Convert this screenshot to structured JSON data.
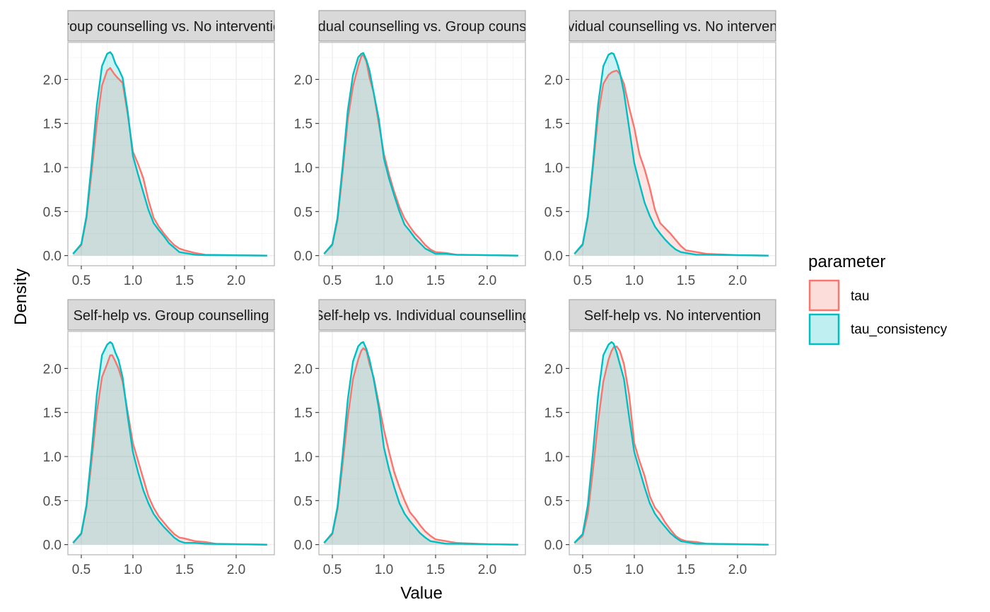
{
  "chart_data": {
    "type": "area",
    "xlabel": "Value",
    "ylabel": "Density",
    "xlim": [
      0.37,
      2.37
    ],
    "ylim": [
      -0.115,
      2.42
    ],
    "xticks": [
      0.5,
      1.0,
      1.5,
      2.0
    ],
    "xtick_labels": [
      "0.5",
      "1.0",
      "1.5",
      "2.0"
    ],
    "yticks": [
      0.0,
      0.5,
      1.0,
      1.5,
      2.0
    ],
    "ytick_labels": [
      "0.0",
      "0.5",
      "1.0",
      "1.5",
      "2.0"
    ],
    "grid": true,
    "legend": {
      "title": "parameter",
      "position": "right",
      "entries": [
        {
          "name": "tau",
          "line_color": "#F8766D",
          "fill_color": "#F8766D"
        },
        {
          "name": "tau_consistency",
          "line_color": "#00BFC4",
          "fill_color": "#00BFC4"
        }
      ]
    },
    "panels": [
      {
        "title": "Group counselling vs. No intervention",
        "series": [
          {
            "name": "tau",
            "x": [
              0.42,
              0.5,
              0.55,
              0.6,
              0.65,
              0.7,
              0.75,
              0.78,
              0.82,
              0.85,
              0.9,
              0.95,
              1.0,
              1.05,
              1.1,
              1.15,
              1.2,
              1.25,
              1.3,
              1.35,
              1.4,
              1.45,
              1.5,
              1.6,
              1.7,
              2.0,
              2.3
            ],
            "y": [
              0.02,
              0.12,
              0.42,
              0.95,
              1.5,
              1.93,
              2.1,
              2.13,
              2.06,
              2.02,
              1.96,
              1.6,
              1.18,
              1.04,
              0.88,
              0.63,
              0.43,
              0.33,
              0.25,
              0.18,
              0.12,
              0.08,
              0.06,
              0.03,
              0.01,
              0.005,
              0.0
            ]
          },
          {
            "name": "tau_consistency",
            "x": [
              0.42,
              0.5,
              0.55,
              0.6,
              0.65,
              0.7,
              0.75,
              0.78,
              0.8,
              0.83,
              0.86,
              0.9,
              0.95,
              1.0,
              1.05,
              1.1,
              1.15,
              1.2,
              1.25,
              1.3,
              1.35,
              1.4,
              1.45,
              1.5,
              1.6,
              1.7,
              2.0,
              2.3
            ],
            "y": [
              0.02,
              0.13,
              0.45,
              1.05,
              1.7,
              2.15,
              2.29,
              2.31,
              2.28,
              2.18,
              2.12,
              2.02,
              1.63,
              1.13,
              0.92,
              0.72,
              0.52,
              0.37,
              0.29,
              0.22,
              0.14,
              0.09,
              0.04,
              0.03,
              0.01,
              0.005,
              0.003,
              0.0
            ]
          }
        ]
      },
      {
        "title": "Individual counselling vs. Group counselling",
        "series": [
          {
            "name": "tau",
            "x": [
              0.42,
              0.5,
              0.55,
              0.6,
              0.65,
              0.7,
              0.75,
              0.78,
              0.8,
              0.83,
              0.86,
              0.9,
              0.95,
              1.0,
              1.05,
              1.1,
              1.15,
              1.2,
              1.25,
              1.3,
              1.35,
              1.4,
              1.45,
              1.5,
              1.6,
              1.7,
              2.0,
              2.3
            ],
            "y": [
              0.02,
              0.12,
              0.4,
              0.95,
              1.55,
              1.92,
              2.15,
              2.26,
              2.28,
              2.2,
              2.02,
              1.85,
              1.5,
              1.15,
              0.92,
              0.72,
              0.55,
              0.42,
              0.33,
              0.25,
              0.19,
              0.12,
              0.07,
              0.04,
              0.03,
              0.01,
              0.005,
              0.0
            ]
          },
          {
            "name": "tau_consistency",
            "x": [
              0.42,
              0.5,
              0.55,
              0.6,
              0.65,
              0.7,
              0.75,
              0.78,
              0.8,
              0.83,
              0.86,
              0.9,
              0.95,
              1.0,
              1.05,
              1.1,
              1.15,
              1.2,
              1.25,
              1.3,
              1.35,
              1.4,
              1.45,
              1.5,
              1.6,
              1.7,
              2.0,
              2.3
            ],
            "y": [
              0.02,
              0.13,
              0.43,
              1.02,
              1.65,
              2.05,
              2.25,
              2.29,
              2.3,
              2.22,
              2.1,
              1.85,
              1.55,
              1.1,
              0.87,
              0.68,
              0.5,
              0.35,
              0.28,
              0.2,
              0.14,
              0.08,
              0.05,
              0.02,
              0.02,
              0.01,
              0.005,
              0.0
            ]
          }
        ]
      },
      {
        "title": "Individual counselling vs. No intervention",
        "series": [
          {
            "name": "tau",
            "x": [
              0.42,
              0.5,
              0.55,
              0.6,
              0.65,
              0.7,
              0.75,
              0.78,
              0.8,
              0.83,
              0.86,
              0.9,
              0.95,
              1.0,
              1.05,
              1.1,
              1.15,
              1.2,
              1.25,
              1.3,
              1.35,
              1.4,
              1.45,
              1.5,
              1.6,
              1.7,
              2.0,
              2.3
            ],
            "y": [
              0.02,
              0.12,
              0.43,
              1.0,
              1.6,
              1.95,
              2.05,
              2.08,
              2.09,
              2.1,
              2.06,
              1.95,
              1.68,
              1.45,
              1.15,
              0.98,
              0.77,
              0.52,
              0.37,
              0.31,
              0.25,
              0.18,
              0.11,
              0.06,
              0.04,
              0.02,
              0.005,
              0.0
            ]
          },
          {
            "name": "tau_consistency",
            "x": [
              0.42,
              0.5,
              0.55,
              0.6,
              0.65,
              0.7,
              0.75,
              0.78,
              0.8,
              0.83,
              0.86,
              0.9,
              0.95,
              1.0,
              1.05,
              1.1,
              1.15,
              1.2,
              1.25,
              1.3,
              1.35,
              1.4,
              1.45,
              1.5,
              1.6,
              1.7,
              2.0,
              2.3
            ],
            "y": [
              0.02,
              0.13,
              0.45,
              1.05,
              1.72,
              2.15,
              2.28,
              2.3,
              2.29,
              2.2,
              2.08,
              1.85,
              1.45,
              1.05,
              0.82,
              0.6,
              0.45,
              0.33,
              0.25,
              0.18,
              0.12,
              0.07,
              0.04,
              0.03,
              0.01,
              0.01,
              0.005,
              0.0
            ]
          }
        ]
      },
      {
        "title": "Self-help vs. Group counselling",
        "series": [
          {
            "name": "tau",
            "x": [
              0.42,
              0.5,
              0.55,
              0.6,
              0.65,
              0.7,
              0.75,
              0.78,
              0.8,
              0.83,
              0.86,
              0.9,
              0.95,
              1.0,
              1.05,
              1.1,
              1.15,
              1.2,
              1.25,
              1.3,
              1.35,
              1.4,
              1.45,
              1.5,
              1.6,
              1.7,
              1.8,
              2.0,
              2.3
            ],
            "y": [
              0.02,
              0.12,
              0.42,
              0.95,
              1.5,
              1.9,
              2.05,
              2.15,
              2.15,
              2.08,
              2.0,
              1.85,
              1.5,
              1.15,
              0.95,
              0.75,
              0.55,
              0.42,
              0.32,
              0.25,
              0.18,
              0.12,
              0.08,
              0.07,
              0.04,
              0.03,
              0.01,
              0.005,
              0.0
            ]
          },
          {
            "name": "tau_consistency",
            "x": [
              0.42,
              0.5,
              0.55,
              0.6,
              0.65,
              0.7,
              0.75,
              0.78,
              0.8,
              0.83,
              0.86,
              0.9,
              0.95,
              1.0,
              1.05,
              1.1,
              1.15,
              1.2,
              1.25,
              1.3,
              1.35,
              1.4,
              1.45,
              1.5,
              1.6,
              1.7,
              2.0,
              2.3
            ],
            "y": [
              0.02,
              0.13,
              0.45,
              1.05,
              1.7,
              2.15,
              2.27,
              2.3,
              2.28,
              2.18,
              2.1,
              1.9,
              1.45,
              1.05,
              0.82,
              0.62,
              0.47,
              0.35,
              0.27,
              0.2,
              0.14,
              0.08,
              0.04,
              0.02,
              0.02,
              0.01,
              0.005,
              0.0
            ]
          }
        ]
      },
      {
        "title": "Self-help vs. Individual counselling",
        "series": [
          {
            "name": "tau",
            "x": [
              0.42,
              0.5,
              0.55,
              0.6,
              0.65,
              0.7,
              0.75,
              0.78,
              0.8,
              0.83,
              0.86,
              0.9,
              0.95,
              1.0,
              1.05,
              1.1,
              1.15,
              1.2,
              1.25,
              1.3,
              1.35,
              1.4,
              1.45,
              1.5,
              1.6,
              1.7,
              2.0,
              2.3
            ],
            "y": [
              0.02,
              0.12,
              0.4,
              0.92,
              1.45,
              1.88,
              2.1,
              2.2,
              2.23,
              2.2,
              2.05,
              1.9,
              1.6,
              1.3,
              1.05,
              0.82,
              0.65,
              0.5,
              0.37,
              0.3,
              0.22,
              0.15,
              0.1,
              0.06,
              0.04,
              0.02,
              0.005,
              0.0
            ]
          },
          {
            "name": "tau_consistency",
            "x": [
              0.42,
              0.5,
              0.55,
              0.6,
              0.65,
              0.7,
              0.75,
              0.78,
              0.8,
              0.83,
              0.86,
              0.9,
              0.95,
              1.0,
              1.05,
              1.1,
              1.15,
              1.2,
              1.25,
              1.3,
              1.35,
              1.4,
              1.45,
              1.5,
              1.6,
              1.7,
              2.0,
              2.3
            ],
            "y": [
              0.02,
              0.13,
              0.43,
              1.02,
              1.65,
              2.08,
              2.25,
              2.29,
              2.3,
              2.22,
              2.1,
              1.88,
              1.55,
              1.1,
              0.85,
              0.65,
              0.47,
              0.35,
              0.27,
              0.2,
              0.13,
              0.08,
              0.04,
              0.03,
              0.01,
              0.01,
              0.005,
              0.0
            ]
          }
        ]
      },
      {
        "title": "Self-help vs. No intervention",
        "series": [
          {
            "name": "tau",
            "x": [
              0.42,
              0.5,
              0.55,
              0.6,
              0.65,
              0.7,
              0.75,
              0.78,
              0.8,
              0.83,
              0.86,
              0.9,
              0.95,
              1.0,
              1.05,
              1.1,
              1.15,
              1.2,
              1.25,
              1.3,
              1.35,
              1.4,
              1.45,
              1.5,
              1.6,
              1.7,
              2.0,
              2.3
            ],
            "y": [
              0.02,
              0.1,
              0.35,
              0.85,
              1.4,
              1.85,
              2.1,
              2.2,
              2.24,
              2.25,
              2.2,
              2.05,
              1.7,
              1.15,
              0.95,
              0.78,
              0.55,
              0.42,
              0.35,
              0.25,
              0.17,
              0.1,
              0.06,
              0.04,
              0.03,
              0.01,
              0.005,
              0.0
            ]
          },
          {
            "name": "tau_consistency",
            "x": [
              0.42,
              0.5,
              0.55,
              0.6,
              0.65,
              0.7,
              0.75,
              0.78,
              0.8,
              0.83,
              0.86,
              0.9,
              0.95,
              1.0,
              1.05,
              1.1,
              1.15,
              1.2,
              1.25,
              1.3,
              1.35,
              1.4,
              1.45,
              1.5,
              1.6,
              1.7,
              2.0,
              2.3
            ],
            "y": [
              0.02,
              0.12,
              0.45,
              1.05,
              1.7,
              2.15,
              2.27,
              2.3,
              2.28,
              2.18,
              2.05,
              1.88,
              1.45,
              1.05,
              0.85,
              0.65,
              0.47,
              0.35,
              0.27,
              0.2,
              0.13,
              0.08,
              0.04,
              0.03,
              0.01,
              0.01,
              0.005,
              0.0
            ]
          }
        ]
      }
    ]
  }
}
